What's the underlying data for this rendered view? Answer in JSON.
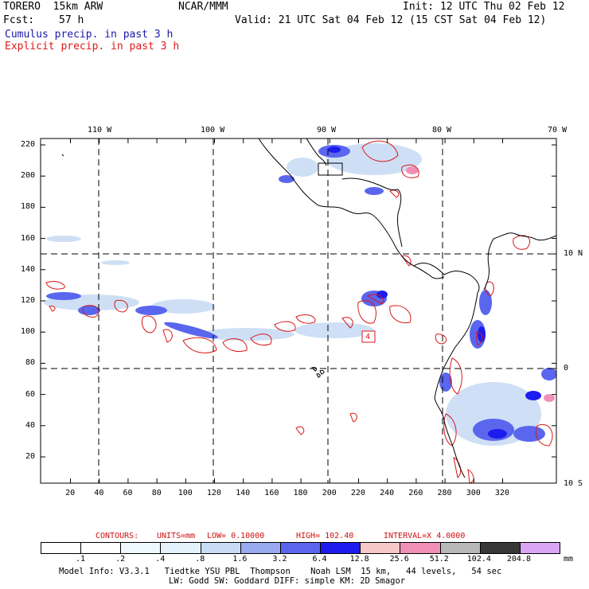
{
  "header": {
    "model": "TORERO  15km ARW",
    "org": "NCAR/MMM",
    "init": "Init: 12 UTC Thu 02 Feb 12",
    "fcst_label": "Fcst:",
    "fcst_value": "57 h",
    "valid": "Valid: 21 UTC Sat 04 Feb 12 (15 CST Sat 04 Feb 12)",
    "line_cumulus": "Cumulus precip. in past 3 h",
    "line_explicit": "Explicit precip. in past 3 h"
  },
  "map": {
    "top_lon_labels": [
      "110 W",
      "100 W",
      "90 W",
      "80 W",
      "70 W"
    ],
    "right_lat_labels": [
      "10 N",
      "0",
      "10 S"
    ],
    "left_y_ticks": [
      "220",
      "200",
      "180",
      "160",
      "140",
      "120",
      "100",
      "80",
      "60",
      "40",
      "20"
    ],
    "bottom_x_ticks": [
      "20",
      "40",
      "60",
      "80",
      "100",
      "120",
      "140",
      "160",
      "180",
      "200",
      "220",
      "240",
      "260",
      "280",
      "300",
      "320"
    ],
    "box_label": "4"
  },
  "contour_info": {
    "label_contours": "CONTOURS:",
    "units": "UNITS=mm",
    "low": "LOW= 0.10000",
    "high": "HIGH= 102.40",
    "interval": "INTERVAL=X 4.0000"
  },
  "colorbar": {
    "labels": [
      ".1",
      ".2",
      ".4",
      ".8",
      "1.6",
      "3.2",
      "6.4",
      "12.8",
      "25.6",
      "51.2",
      "102.4",
      "204.8"
    ],
    "unit": "mm",
    "colors": [
      "#ffffff",
      "#ffffff",
      "#eef8ff",
      "#e3f2fb",
      "#c9dcf5",
      "#9aaaf0",
      "#5a66ee",
      "#1c1cee",
      "#f6c8c8",
      "#f090b8",
      "#b8b8b8",
      "#383838",
      "#d8a6f4"
    ]
  },
  "footer": {
    "line1": "Model Info: V3.3.1   Tiedtke YSU PBL  Thompson    Noah LSM  15 km,   44 levels,   54 sec",
    "line2": "LW: Godd SW: Goddard DIFF: simple KM: 2D Smagor"
  }
}
